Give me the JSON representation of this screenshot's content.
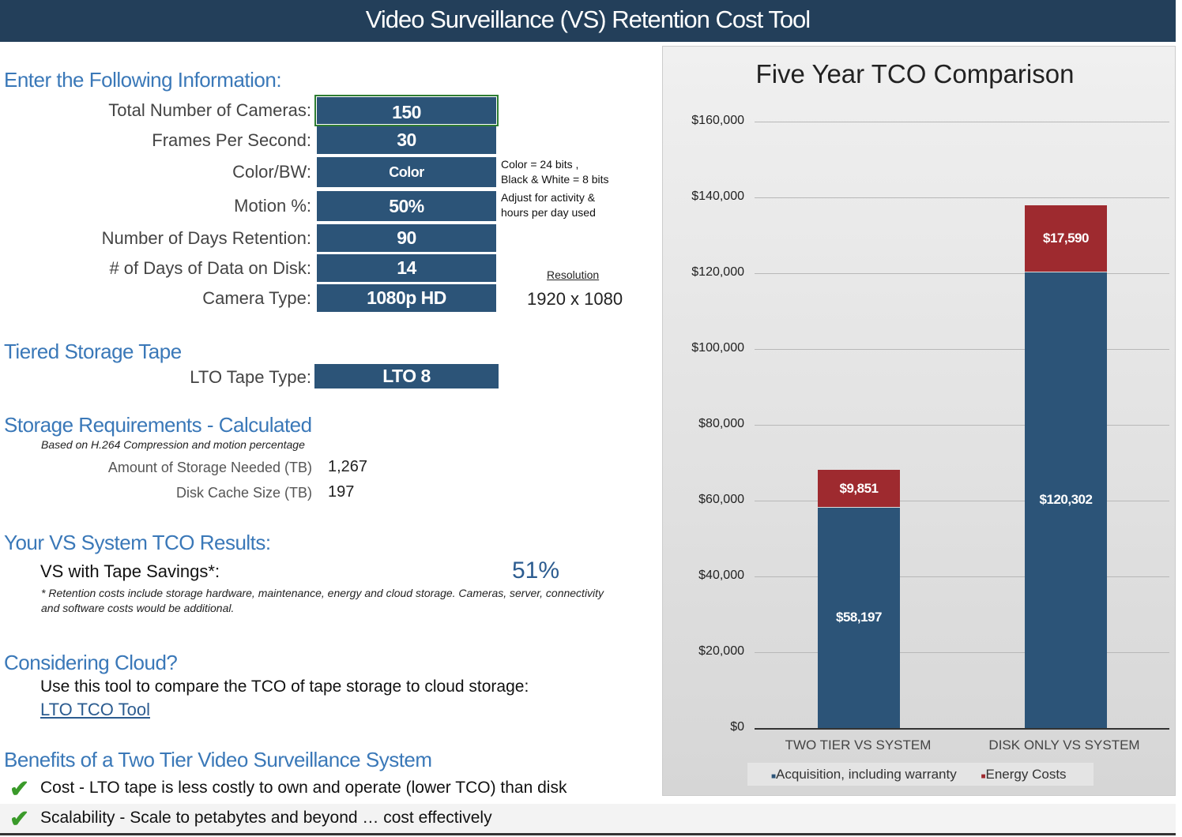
{
  "header": {
    "title": "Video Surveillance (VS) Retention Cost Tool"
  },
  "inputs": {
    "heading": "Enter the Following Information:",
    "fields": [
      {
        "label": "Total Number of Cameras:",
        "value": "150"
      },
      {
        "label": "Frames Per Second:",
        "value": "30"
      },
      {
        "label": "Color/BW:",
        "value": "Color"
      },
      {
        "label": "Motion %:",
        "value": "50%"
      },
      {
        "label": "Number of Days Retention:",
        "value": "90"
      },
      {
        "label": "# of Days of Data on Disk:",
        "value": "14"
      },
      {
        "label": "Camera Type:",
        "value": "1080p HD"
      }
    ],
    "color_note": [
      "Color = 24 bits ,",
      "Black & White = 8 bits"
    ],
    "motion_note": [
      "Adjust for activity &",
      "hours per day used"
    ],
    "resolution_label": "Resolution",
    "resolution_value": "1920 x 1080"
  },
  "tape": {
    "heading": "Tiered Storage Tape",
    "label": "LTO Tape Type:",
    "value": "LTO 8"
  },
  "storage": {
    "heading": "Storage Requirements - Calculated",
    "subtitle": "Based on H.264 Compression and motion percentage",
    "rows": [
      {
        "label": "Amount of Storage Needed (TB)",
        "value": "1,267"
      },
      {
        "label": "Disk Cache Size (TB)",
        "value": "197"
      }
    ]
  },
  "results": {
    "heading": "Your VS System TCO Results:",
    "label": "VS with Tape Savings*:",
    "value": "51%",
    "footnote": [
      "* Retention costs include storage hardware, maintenance, energy and cloud storage. Cameras, server, connectivity",
      "and software costs would be additional."
    ]
  },
  "cloud": {
    "heading": "Considering Cloud?",
    "text": "Use this tool to compare the TCO of tape storage to cloud storage:",
    "link": "LTO TCO Tool"
  },
  "benefits": {
    "heading": "Benefits of a Two Tier Video Surveillance System",
    "items": [
      "Cost - LTO tape is less costly to own and operate (lower TCO) than disk",
      "Scalability - Scale to petabytes and beyond … cost effectively"
    ]
  },
  "chart_data": {
    "type": "bar",
    "stacked": true,
    "title": "Five Year TCO Comparison",
    "categories": [
      "TWO TIER VS SYSTEM",
      "DISK ONLY VS SYSTEM"
    ],
    "series": [
      {
        "name": "Acquisition, including warranty",
        "values": [
          58197,
          120302
        ],
        "labels": [
          "$58,197",
          "$120,302"
        ],
        "color": "#2c5478"
      },
      {
        "name": "Energy Costs",
        "values": [
          9851,
          17590
        ],
        "labels": [
          "$9,851",
          "$17,590"
        ],
        "color": "#9e2a2f"
      }
    ],
    "ylim": [
      0,
      160000
    ],
    "yticks": [
      "$0",
      "$20,000",
      "$40,000",
      "$60,000",
      "$80,000",
      "$100,000",
      "$120,000",
      "$140,000",
      "$160,000"
    ],
    "grid": true,
    "legend": "bottom"
  }
}
